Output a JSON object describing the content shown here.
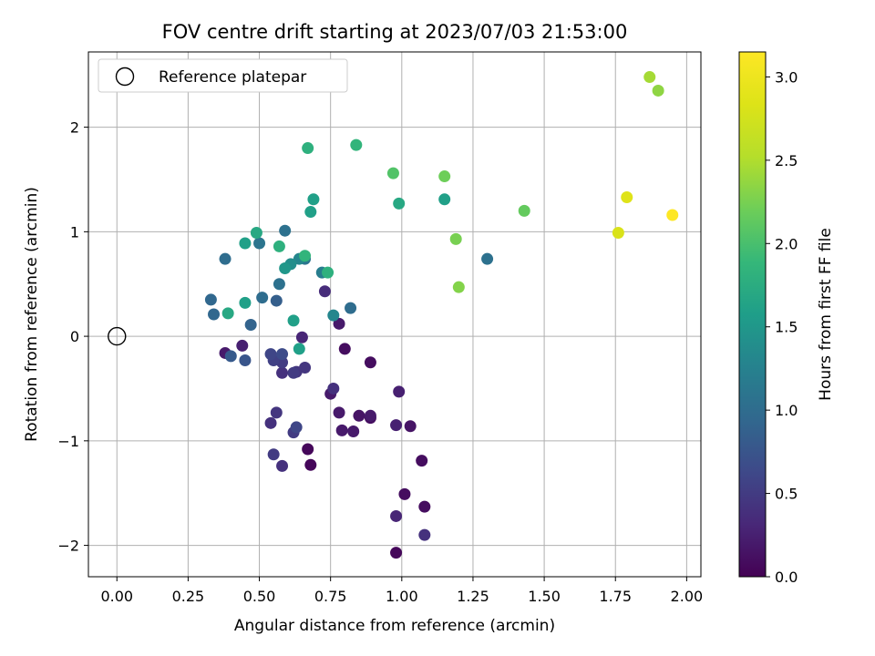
{
  "chart_data": {
    "type": "scatter",
    "title": "FOV centre drift starting at 2023/07/03 21:53:00",
    "xlabel": "Angular distance from reference (arcmin)",
    "ylabel": "Rotation from reference (arcmin)",
    "xlim": [
      -0.1,
      2.05
    ],
    "ylim": [
      -2.3,
      2.72
    ],
    "x_ticks": [
      "0.00",
      "0.25",
      "0.50",
      "0.75",
      "1.00",
      "1.25",
      "1.50",
      "1.75",
      "2.00"
    ],
    "y_ticks": [
      "−2",
      "−1",
      "0",
      "1",
      "2"
    ],
    "grid": true,
    "legend": {
      "entries": [
        "Reference platepar"
      ],
      "placement": "top-left"
    },
    "reference_point": {
      "x": 0.0,
      "y": 0.0
    },
    "colorbar": {
      "label": "Hours from first FF file",
      "colormap": "viridis",
      "range": [
        0,
        3.15
      ],
      "ticks": [
        "0.0",
        "0.5",
        "1.0",
        "1.5",
        "2.0",
        "2.5",
        "3.0"
      ]
    },
    "points": [
      {
        "x": 0.98,
        "y": -2.07,
        "h": 0.05
      },
      {
        "x": 0.68,
        "y": -1.23,
        "h": 0.05
      },
      {
        "x": 0.67,
        "y": -1.08,
        "h": 0.05
      },
      {
        "x": 1.07,
        "y": -1.19,
        "h": 0.1
      },
      {
        "x": 1.01,
        "y": -1.51,
        "h": 0.1
      },
      {
        "x": 1.08,
        "y": -1.63,
        "h": 0.1
      },
      {
        "x": 1.03,
        "y": -0.86,
        "h": 0.15
      },
      {
        "x": 0.89,
        "y": -0.78,
        "h": 0.1
      },
      {
        "x": 0.89,
        "y": -0.25,
        "h": 0.1
      },
      {
        "x": 0.8,
        "y": -0.12,
        "h": 0.1
      },
      {
        "x": 0.85,
        "y": -0.76,
        "h": 0.15
      },
      {
        "x": 0.89,
        "y": -0.76,
        "h": 0.2
      },
      {
        "x": 0.79,
        "y": -0.9,
        "h": 0.2
      },
      {
        "x": 0.83,
        "y": -0.91,
        "h": 0.2
      },
      {
        "x": 0.78,
        "y": -0.73,
        "h": 0.2
      },
      {
        "x": 0.75,
        "y": -0.55,
        "h": 0.2
      },
      {
        "x": 0.98,
        "y": -0.85,
        "h": 0.25
      },
      {
        "x": 0.99,
        "y": -0.53,
        "h": 0.25
      },
      {
        "x": 0.98,
        "y": -1.72,
        "h": 0.3
      },
      {
        "x": 1.08,
        "y": -1.9,
        "h": 0.4
      },
      {
        "x": 0.78,
        "y": 0.12,
        "h": 0.2
      },
      {
        "x": 0.38,
        "y": -0.16,
        "h": 0.2
      },
      {
        "x": 0.44,
        "y": -0.09,
        "h": 0.25
      },
      {
        "x": 0.65,
        "y": -0.01,
        "h": 0.3
      },
      {
        "x": 0.73,
        "y": 0.43,
        "h": 0.35
      },
      {
        "x": 0.76,
        "y": -0.5,
        "h": 0.4
      },
      {
        "x": 0.58,
        "y": -1.24,
        "h": 0.4
      },
      {
        "x": 0.54,
        "y": -0.83,
        "h": 0.4
      },
      {
        "x": 0.56,
        "y": -0.73,
        "h": 0.45
      },
      {
        "x": 0.62,
        "y": -0.92,
        "h": 0.5
      },
      {
        "x": 0.55,
        "y": -1.13,
        "h": 0.5
      },
      {
        "x": 0.63,
        "y": -0.87,
        "h": 0.6
      },
      {
        "x": 0.58,
        "y": -0.35,
        "h": 0.4
      },
      {
        "x": 0.63,
        "y": -0.34,
        "h": 0.45
      },
      {
        "x": 0.66,
        "y": -0.3,
        "h": 0.45
      },
      {
        "x": 0.62,
        "y": -0.35,
        "h": 0.5
      },
      {
        "x": 0.58,
        "y": -0.25,
        "h": 0.5
      },
      {
        "x": 0.55,
        "y": -0.23,
        "h": 0.55
      },
      {
        "x": 0.54,
        "y": -0.17,
        "h": 0.6
      },
      {
        "x": 0.58,
        "y": -0.17,
        "h": 0.65
      },
      {
        "x": 0.45,
        "y": -0.23,
        "h": 0.75
      },
      {
        "x": 0.4,
        "y": -0.19,
        "h": 0.8
      },
      {
        "x": 0.56,
        "y": 0.34,
        "h": 0.85
      },
      {
        "x": 0.47,
        "y": 0.11,
        "h": 0.9
      },
      {
        "x": 0.34,
        "y": 0.21,
        "h": 0.95
      },
      {
        "x": 0.33,
        "y": 0.35,
        "h": 0.95
      },
      {
        "x": 0.51,
        "y": 0.37,
        "h": 1.0
      },
      {
        "x": 0.57,
        "y": 0.5,
        "h": 1.05
      },
      {
        "x": 0.38,
        "y": 0.74,
        "h": 1.0
      },
      {
        "x": 0.5,
        "y": 0.89,
        "h": 1.1
      },
      {
        "x": 0.59,
        "y": 1.01,
        "h": 1.05
      },
      {
        "x": 0.66,
        "y": 0.74,
        "h": 1.1
      },
      {
        "x": 0.72,
        "y": 0.61,
        "h": 1.2
      },
      {
        "x": 0.76,
        "y": 0.2,
        "h": 1.3
      },
      {
        "x": 0.82,
        "y": 0.27,
        "h": 1.0
      },
      {
        "x": 0.64,
        "y": 0.74,
        "h": 1.3
      },
      {
        "x": 0.61,
        "y": 0.69,
        "h": 1.4
      },
      {
        "x": 0.59,
        "y": 0.65,
        "h": 1.5
      },
      {
        "x": 0.62,
        "y": 0.15,
        "h": 1.6
      },
      {
        "x": 0.64,
        "y": -0.12,
        "h": 1.6
      },
      {
        "x": 0.45,
        "y": 0.32,
        "h": 1.6
      },
      {
        "x": 0.39,
        "y": 0.22,
        "h": 1.7
      },
      {
        "x": 0.45,
        "y": 0.89,
        "h": 1.6
      },
      {
        "x": 0.49,
        "y": 0.99,
        "h": 1.7
      },
      {
        "x": 0.57,
        "y": 0.86,
        "h": 1.8
      },
      {
        "x": 0.66,
        "y": 0.77,
        "h": 1.85
      },
      {
        "x": 0.74,
        "y": 0.61,
        "h": 1.8
      },
      {
        "x": 0.69,
        "y": 1.31,
        "h": 1.6
      },
      {
        "x": 0.68,
        "y": 1.19,
        "h": 1.6
      },
      {
        "x": 0.99,
        "y": 1.27,
        "h": 1.7
      },
      {
        "x": 1.15,
        "y": 1.31,
        "h": 1.6
      },
      {
        "x": 1.3,
        "y": 0.74,
        "h": 1.05
      },
      {
        "x": 0.67,
        "y": 1.8,
        "h": 1.8
      },
      {
        "x": 0.84,
        "y": 1.83,
        "h": 1.85
      },
      {
        "x": 0.97,
        "y": 1.56,
        "h": 2.05
      },
      {
        "x": 1.15,
        "y": 1.53,
        "h": 2.2
      },
      {
        "x": 1.43,
        "y": 1.2,
        "h": 2.15
      },
      {
        "x": 1.19,
        "y": 0.93,
        "h": 2.25
      },
      {
        "x": 1.2,
        "y": 0.47,
        "h": 2.3
      },
      {
        "x": 1.87,
        "y": 2.48,
        "h": 2.45
      },
      {
        "x": 1.9,
        "y": 2.35,
        "h": 2.35
      },
      {
        "x": 1.76,
        "y": 0.99,
        "h": 2.8
      },
      {
        "x": 1.79,
        "y": 1.33,
        "h": 2.85
      },
      {
        "x": 1.95,
        "y": 1.16,
        "h": 3.15
      }
    ]
  }
}
